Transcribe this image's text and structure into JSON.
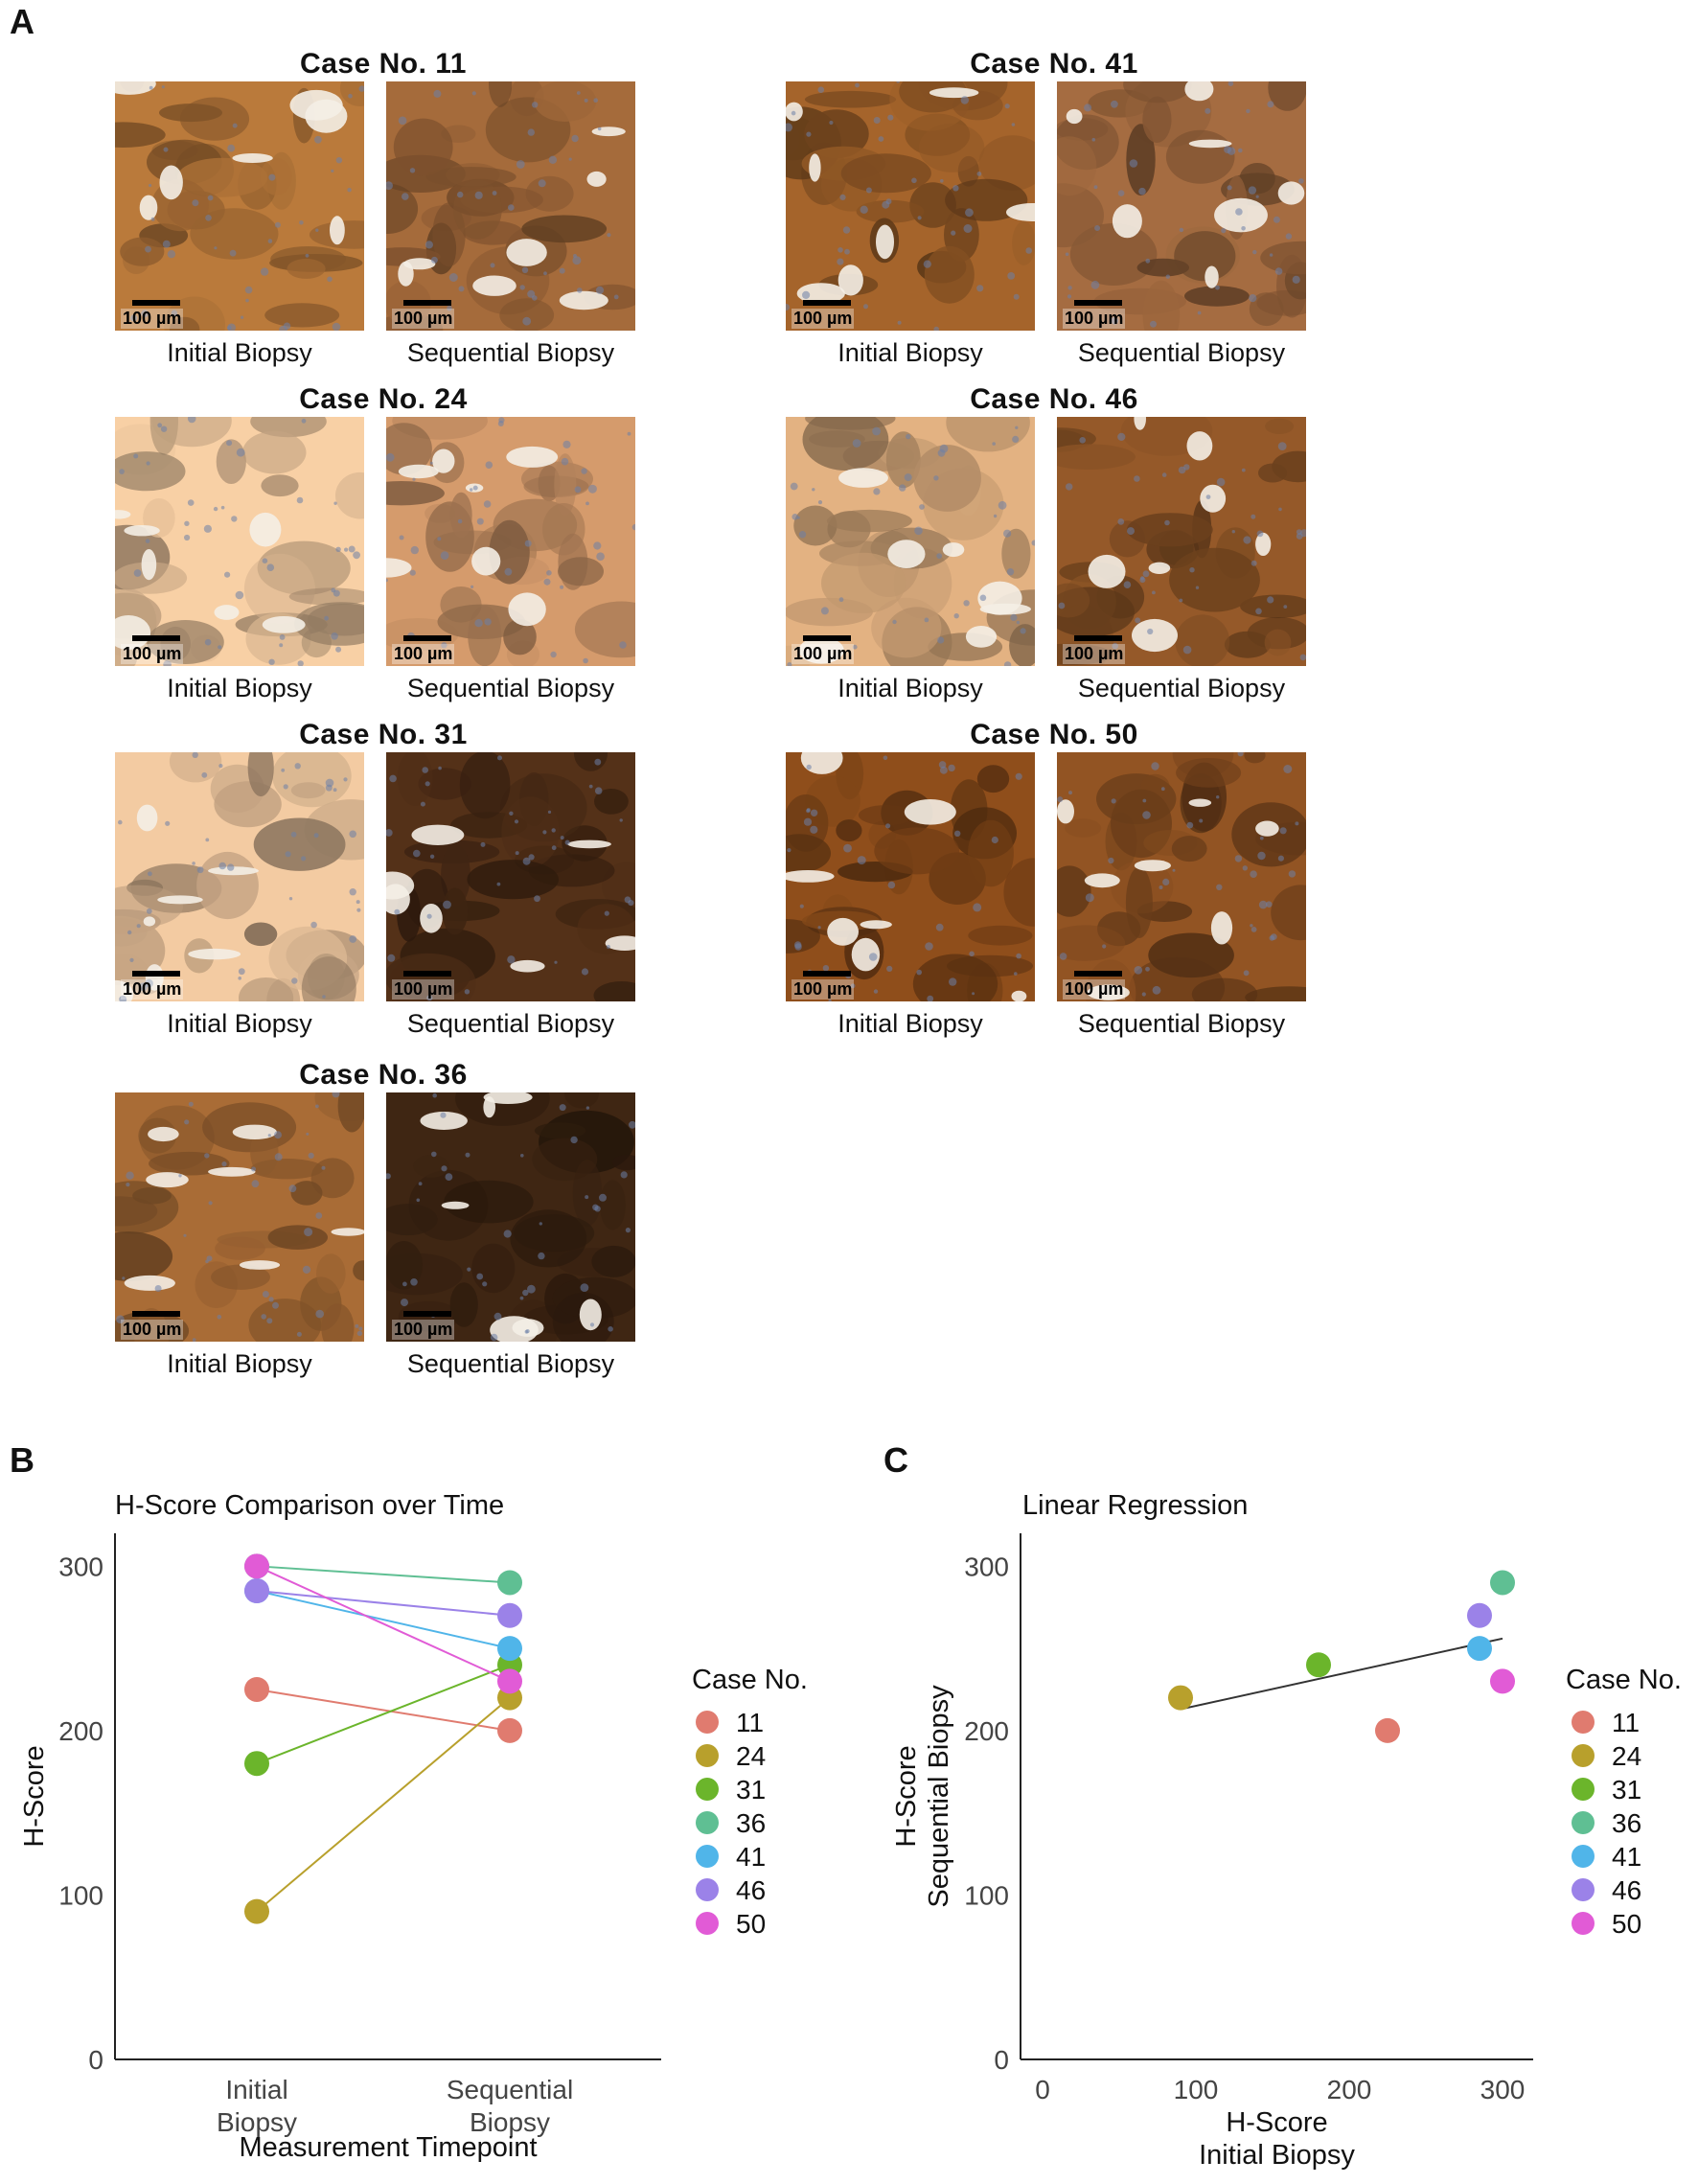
{
  "panels": {
    "a": "A",
    "b": "B",
    "c": "C"
  },
  "panel_a": {
    "scale_label": "100 µm",
    "initial_label": "Initial Biopsy",
    "sequential_label": "Sequential Biopsy",
    "cases": [
      {
        "title": "Case No. 11",
        "initial_stain": "#8a5a2c",
        "sequential_stain": "#7a4f2c"
      },
      {
        "title": "Case No. 24",
        "initial_stain": "#b89a7a",
        "sequential_stain": "#9e7350"
      },
      {
        "title": "Case No. 31",
        "initial_stain": "#b49678",
        "sequential_stain": "#3e2412"
      },
      {
        "title": "Case No. 36",
        "initial_stain": "#7d5028",
        "sequential_stain": "#2f1c0e"
      },
      {
        "title": "Case No. 41",
        "initial_stain": "#7a4a20",
        "sequential_stain": "#7a5030"
      },
      {
        "title": "Case No. 46",
        "initial_stain": "#a88460",
        "sequential_stain": "#6e421e"
      },
      {
        "title": "Case No. 50",
        "initial_stain": "#6a3a14",
        "sequential_stain": "#6c3e1a"
      }
    ]
  },
  "legend": {
    "title": "Case No.",
    "labels": [
      "11",
      "24",
      "31",
      "36",
      "41",
      "46",
      "50"
    ],
    "colors": [
      "#e07b6f",
      "#b8a02c",
      "#6bb52b",
      "#5fbf93",
      "#50b5e9",
      "#9b82e8",
      "#e15bd6"
    ]
  },
  "chart_data": [
    {
      "type": "line",
      "title": "H-Score Comparison over Time",
      "xlabel": "Measurement Timepoint",
      "ylabel": "H-Score",
      "categories": [
        "Initial\nBiopsy",
        "Sequential\nBiopsy"
      ],
      "ylim": [
        0,
        320
      ],
      "yticks": [
        0,
        100,
        200,
        300
      ],
      "series": [
        {
          "name": "11",
          "values": [
            225,
            200
          ]
        },
        {
          "name": "24",
          "values": [
            90,
            220
          ]
        },
        {
          "name": "31",
          "values": [
            180,
            240
          ]
        },
        {
          "name": "36",
          "values": [
            300,
            290
          ]
        },
        {
          "name": "41",
          "values": [
            285,
            250
          ]
        },
        {
          "name": "46",
          "values": [
            285,
            270
          ]
        },
        {
          "name": "50",
          "values": [
            300,
            230
          ]
        }
      ],
      "grid": false,
      "legend": "right"
    },
    {
      "type": "scatter",
      "title": "Linear Regression",
      "xlabel": "H-Score\nInitial Biopsy",
      "ylabel": "H-Score\nSequential Biopsy",
      "xlim": [
        0,
        320
      ],
      "ylim": [
        0,
        320
      ],
      "xticks": [
        0,
        100,
        200,
        300
      ],
      "yticks": [
        0,
        100,
        200,
        300
      ],
      "points": [
        {
          "name": "11",
          "x": 225,
          "y": 200
        },
        {
          "name": "24",
          "x": 90,
          "y": 220
        },
        {
          "name": "31",
          "x": 180,
          "y": 240
        },
        {
          "name": "36",
          "x": 300,
          "y": 290
        },
        {
          "name": "41",
          "x": 285,
          "y": 250
        },
        {
          "name": "46",
          "x": 285,
          "y": 270
        },
        {
          "name": "50",
          "x": 300,
          "y": 230
        }
      ],
      "fit_line": {
        "x": [
          90,
          300
        ],
        "y": [
          213,
          256
        ]
      },
      "grid": false,
      "legend": "right"
    }
  ]
}
